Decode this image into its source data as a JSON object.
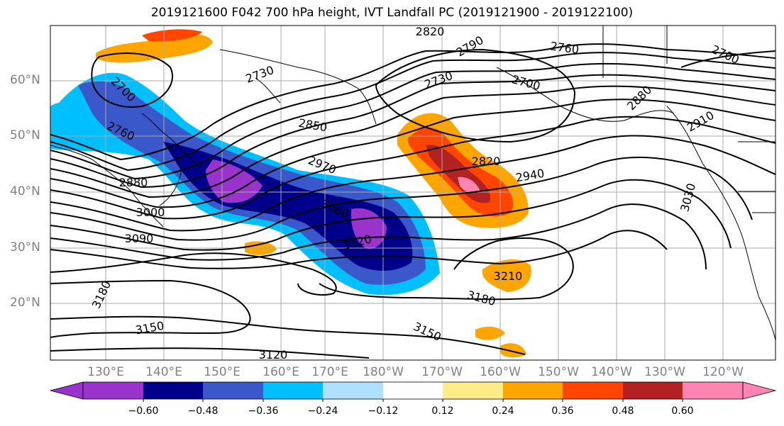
{
  "title": "2019121600 F042 700 hPa height, IVT Landfall PC (2019121900 - 2019122100)",
  "map": {
    "lat_labels": [
      "60°N",
      "50°N",
      "40°N",
      "30°N",
      "20°N"
    ],
    "lon_labels": [
      "130°E",
      "140°E",
      "150°E",
      "160°E",
      "170°E",
      "180°W",
      "170°W",
      "160°W",
      "150°W",
      "140°W",
      "130°W",
      "120°W"
    ],
    "contour_labels": [
      "2820",
      "2790",
      "2760",
      "2700",
      "2730",
      "2700",
      "2730",
      "2700",
      "2760",
      "2850",
      "2820",
      "2880",
      "2970",
      "2940",
      "2910",
      "3000",
      "3060",
      "3030",
      "3090",
      "3120",
      "3210",
      "3180",
      "3180",
      "3150",
      "3120",
      "2880"
    ]
  },
  "colorbar": {
    "ticks": [
      "−0.60",
      "−0.48",
      "−0.36",
      "−0.24",
      "−0.12",
      "0.12",
      "0.24",
      "0.36",
      "0.48",
      "0.60"
    ],
    "colors": [
      "#9933cc",
      "#00008b",
      "#3a58c9",
      "#00bfff",
      "#b0e0ff",
      "#ffffff",
      "#ffeb8a",
      "#ffa500",
      "#ff4500",
      "#b22222",
      "#ff85b0"
    ]
  }
}
